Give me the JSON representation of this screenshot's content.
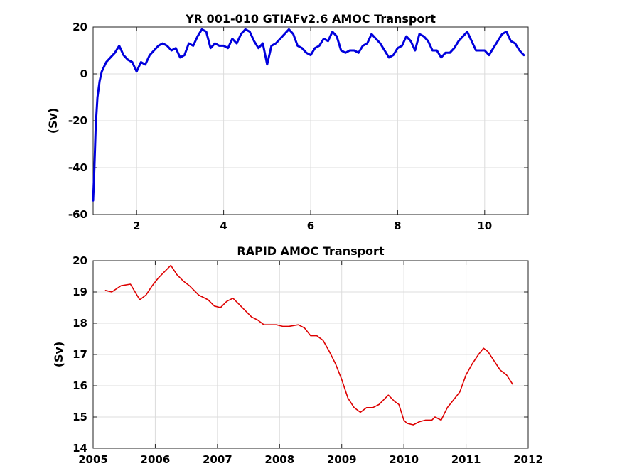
{
  "chart_data": [
    {
      "type": "line",
      "title": "YR 001-010 GTIAFv2.6 AMOC Transport",
      "xlabel": "",
      "ylabel": "(Sv)",
      "xlim": [
        1,
        11
      ],
      "ylim": [
        -60,
        20
      ],
      "xticks": [
        2,
        4,
        6,
        8,
        10
      ],
      "yticks": [
        -60,
        -40,
        -20,
        0,
        20
      ],
      "grid": true,
      "color": "#0000dd",
      "series": [
        {
          "x": [
            1.0,
            1.03,
            1.06,
            1.1,
            1.15,
            1.2,
            1.3,
            1.4,
            1.5,
            1.6,
            1.7,
            1.8,
            1.9,
            2.0,
            2.1,
            2.2,
            2.3,
            2.4,
            2.5,
            2.6,
            2.7,
            2.8,
            2.9,
            3.0,
            3.1,
            3.2,
            3.3,
            3.4,
            3.5,
            3.6,
            3.7,
            3.8,
            3.9,
            4.0,
            4.1,
            4.2,
            4.3,
            4.4,
            4.5,
            4.6,
            4.7,
            4.8,
            4.9,
            5.0,
            5.1,
            5.2,
            5.3,
            5.4,
            5.5,
            5.6,
            5.7,
            5.8,
            5.9,
            6.0,
            6.1,
            6.2,
            6.3,
            6.4,
            6.5,
            6.6,
            6.7,
            6.8,
            6.9,
            7.0,
            7.1,
            7.2,
            7.3,
            7.4,
            7.5,
            7.6,
            7.7,
            7.8,
            7.9,
            8.0,
            8.1,
            8.2,
            8.3,
            8.4,
            8.5,
            8.6,
            8.7,
            8.8,
            8.9,
            9.0,
            9.1,
            9.2,
            9.3,
            9.4,
            9.5,
            9.6,
            9.7,
            9.8,
            9.9,
            10.0,
            10.1,
            10.2,
            10.3,
            10.4,
            10.5,
            10.6,
            10.7,
            10.8,
            10.9
          ],
          "y": [
            -54,
            -40,
            -22,
            -10,
            -3,
            1,
            5,
            7,
            9,
            12,
            8,
            6,
            5,
            1,
            5,
            4,
            8,
            10,
            12,
            13,
            12,
            10,
            11,
            7,
            8,
            13,
            12,
            16,
            19,
            18,
            11,
            13,
            12,
            12,
            11,
            15,
            13,
            17,
            19,
            18,
            14,
            11,
            13,
            4,
            12,
            13,
            15,
            17,
            19,
            17,
            12,
            11,
            9,
            8,
            11,
            12,
            15,
            14,
            18,
            16,
            10,
            9,
            10,
            10,
            9,
            12,
            13,
            17,
            15,
            13,
            10,
            7,
            8,
            11,
            12,
            16,
            14,
            10,
            17,
            16,
            14,
            10,
            10,
            7,
            9,
            9,
            11,
            14,
            16,
            18,
            14,
            10,
            10,
            10,
            8,
            11,
            14,
            17,
            18,
            14,
            13,
            10,
            8
          ]
        }
      ]
    },
    {
      "type": "line",
      "title": "RAPID AMOC Transport",
      "xlabel": "",
      "ylabel": "(Sv)",
      "xlim": [
        2005,
        2012
      ],
      "ylim": [
        14,
        20
      ],
      "xticks": [
        2005,
        2006,
        2007,
        2008,
        2009,
        2010,
        2011,
        2012
      ],
      "yticks": [
        14,
        15,
        16,
        17,
        18,
        19,
        20
      ],
      "grid": true,
      "color": "#dd0000",
      "series": [
        {
          "x": [
            2005.2,
            2005.3,
            2005.45,
            2005.6,
            2005.75,
            2005.85,
            2005.95,
            2006.05,
            2006.15,
            2006.25,
            2006.35,
            2006.45,
            2006.55,
            2006.7,
            2006.85,
            2006.95,
            2007.05,
            2007.15,
            2007.25,
            2007.35,
            2007.45,
            2007.55,
            2007.65,
            2007.75,
            2007.85,
            2007.95,
            2008.05,
            2008.15,
            2008.3,
            2008.4,
            2008.5,
            2008.6,
            2008.7,
            2008.8,
            2008.9,
            2009.0,
            2009.1,
            2009.2,
            2009.3,
            2009.4,
            2009.5,
            2009.6,
            2009.7,
            2009.75,
            2009.85,
            2009.92,
            2010.0,
            2010.05,
            2010.15,
            2010.25,
            2010.35,
            2010.45,
            2010.5,
            2010.6,
            2010.7,
            2010.8,
            2010.9,
            2011.0,
            2011.1,
            2011.2,
            2011.28,
            2011.35,
            2011.45,
            2011.55,
            2011.65,
            2011.75
          ],
          "y": [
            19.05,
            19.0,
            19.2,
            19.25,
            18.75,
            18.9,
            19.2,
            19.45,
            19.65,
            19.85,
            19.55,
            19.35,
            19.2,
            18.9,
            18.75,
            18.55,
            18.5,
            18.7,
            18.8,
            18.6,
            18.4,
            18.2,
            18.1,
            17.95,
            17.95,
            17.95,
            17.9,
            17.9,
            17.95,
            17.85,
            17.6,
            17.6,
            17.45,
            17.1,
            16.7,
            16.2,
            15.6,
            15.3,
            15.15,
            15.3,
            15.3,
            15.4,
            15.6,
            15.7,
            15.5,
            15.4,
            14.9,
            14.8,
            14.75,
            14.85,
            14.9,
            14.9,
            15.0,
            14.9,
            15.3,
            15.55,
            15.8,
            16.35,
            16.7,
            17.0,
            17.2,
            17.1,
            16.8,
            16.5,
            16.35,
            16.05
          ]
        }
      ]
    }
  ]
}
